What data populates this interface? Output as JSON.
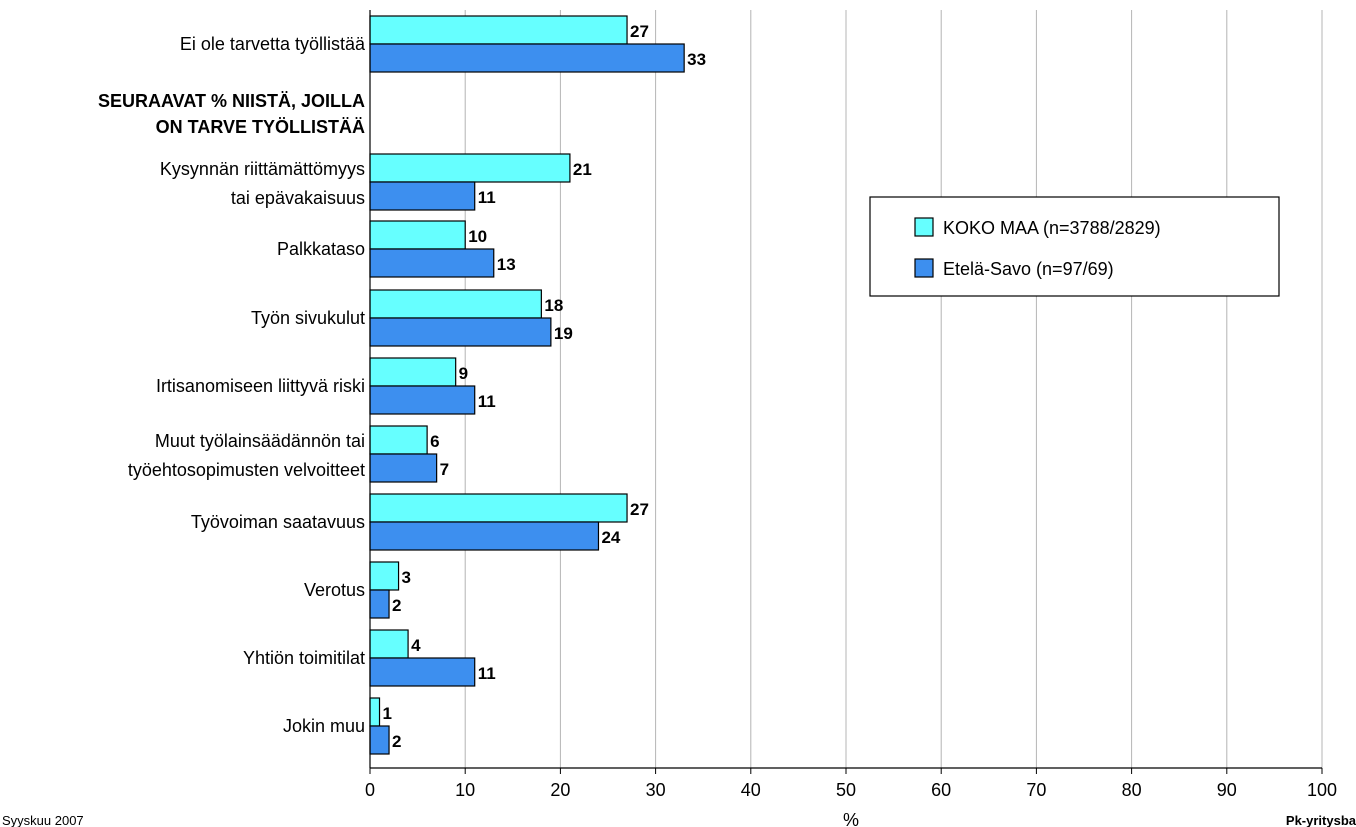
{
  "chart_data": {
    "type": "bar",
    "orientation": "horizontal",
    "categories": [
      [
        "Ei ole tarvetta työllistää"
      ],
      [
        "Kysynnän riittämättömyys",
        "tai epävakaisuus"
      ],
      [
        "Palkkataso"
      ],
      [
        "Työn sivukulut"
      ],
      [
        "Irtisanomiseen liittyvä riski"
      ],
      [
        "Muut työlainsäädännön tai",
        "työehtosopimusten velvoitteet"
      ],
      [
        "Työvoiman saatavuus"
      ],
      [
        "Verotus"
      ],
      [
        "Yhtiön toimitilat"
      ],
      [
        "Jokin muu"
      ]
    ],
    "heading": [
      "SEURAAVAT % NIISTÄ, JOILLA",
      "ON TARVE TYÖLLISTÄÄ"
    ],
    "series": [
      {
        "name": "KOKO MAA (n=3788/2829)",
        "color": "#66ffff",
        "values": [
          27,
          21,
          10,
          18,
          9,
          6,
          27,
          3,
          4,
          1
        ]
      },
      {
        "name": "Etelä-Savo (n=97/69)",
        "color": "#3d8fef",
        "values": [
          33,
          11,
          13,
          19,
          11,
          7,
          24,
          2,
          11,
          2
        ]
      }
    ],
    "xlim": [
      0,
      100
    ],
    "xticks": [
      0,
      10,
      20,
      30,
      40,
      50,
      60,
      70,
      80,
      90,
      100
    ],
    "xlabel": "%",
    "grid": true,
    "legend_position": "right"
  },
  "footer": {
    "left": "Syyskuu 2007",
    "right": "Pk-yritysba"
  }
}
